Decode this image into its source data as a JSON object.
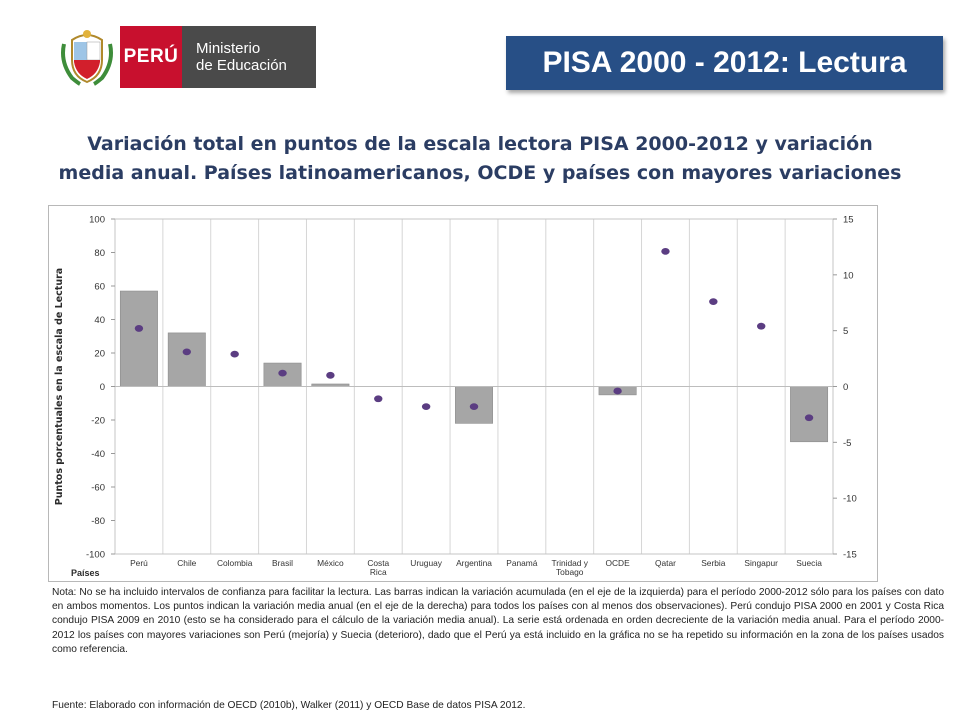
{
  "header": {
    "country": "PERÚ",
    "ministry_line1": "Ministerio",
    "ministry_line2": "de Educación",
    "banner_title": "PISA 2000 - 2012: Lectura"
  },
  "chart_title_line1": "Variación total en puntos de la escala lectora PISA 2000-2012 y variación",
  "chart_title_line2": "media anual. Países latinoamericanos, OCDE y países con mayores variaciones",
  "colors": {
    "bar": "#a6a6a6",
    "dot": "#5b3d82",
    "banner": "#274f86",
    "peru_red": "#c8102e"
  },
  "chart_data": {
    "type": "bar",
    "title": "",
    "xlabel": "Países",
    "ylabel": "Puntos porcentuales en la escala de Lectura",
    "ylim": [
      -100,
      100
    ],
    "y2lim": [
      -15,
      15
    ],
    "yticks": [
      100,
      80,
      60,
      40,
      20,
      0,
      -20,
      -40,
      -60,
      -80,
      -100
    ],
    "y2ticks": [
      15,
      10,
      5,
      0,
      -5,
      -10,
      -15
    ],
    "grid": "vertical",
    "categories": [
      "Perú",
      "Chile",
      "Colombia",
      "Brasil",
      "México",
      "Costa Rica",
      "Uruguay",
      "Argentina",
      "Panamá",
      "Trinidad y Tobago",
      "OCDE",
      "Qatar",
      "Serbia",
      "Singapur",
      "Suecia"
    ],
    "category_lines": [
      [
        "Perú"
      ],
      [
        "Chile"
      ],
      [
        "Colombia"
      ],
      [
        "Brasil"
      ],
      [
        "México"
      ],
      [
        "Costa",
        "Rica"
      ],
      [
        "Uruguay"
      ],
      [
        "Argentina"
      ],
      [
        "Panamá"
      ],
      [
        "Trinidad y",
        "Tobago"
      ],
      [
        "OCDE"
      ],
      [
        "Qatar"
      ],
      [
        "Serbia"
      ],
      [
        "Singapur"
      ],
      [
        "Suecia"
      ]
    ],
    "series": [
      {
        "name": "Variación acumulada",
        "axis": "left",
        "kind": "bar",
        "values": [
          57,
          32,
          null,
          14,
          1.5,
          null,
          null,
          -22,
          null,
          null,
          -5,
          null,
          null,
          null,
          -33
        ]
      },
      {
        "name": "Variación media anual",
        "axis": "right",
        "kind": "dot",
        "values": [
          5.2,
          3.1,
          2.9,
          1.2,
          1.0,
          -1.1,
          -1.8,
          -1.8,
          null,
          null,
          -0.4,
          12.1,
          7.6,
          5.4,
          -2.8
        ]
      }
    ]
  },
  "note": "Nota: No se ha incluido intervalos de confianza para facilitar la lectura. Las barras indican la variación acumulada (en el eje de la izquierda) para el período 2000-2012 sólo para los países con dato en ambos momentos. Los puntos indican la variación media anual (en el eje de la derecha) para todos los países con al menos dos observaciones). Perú condujo PISA 2000 en 2001 y Costa Rica condujo PISA 2009 en 2010 (esto se ha considerado para el cálculo de la variación media anual). La serie está ordenada en orden decreciente de la variación media anual. Para el período 2000-2012 los países con mayores variaciones son Perú (mejoría) y Suecia (deterioro), dado que el Perú ya está incluido en la gráfica no se ha repetido su información en la zona de los países usados como referencia.",
  "source": "Fuente: Elaborado con información de OECD (2010b), Walker (2011) y OECD Base de datos PISA 2012."
}
